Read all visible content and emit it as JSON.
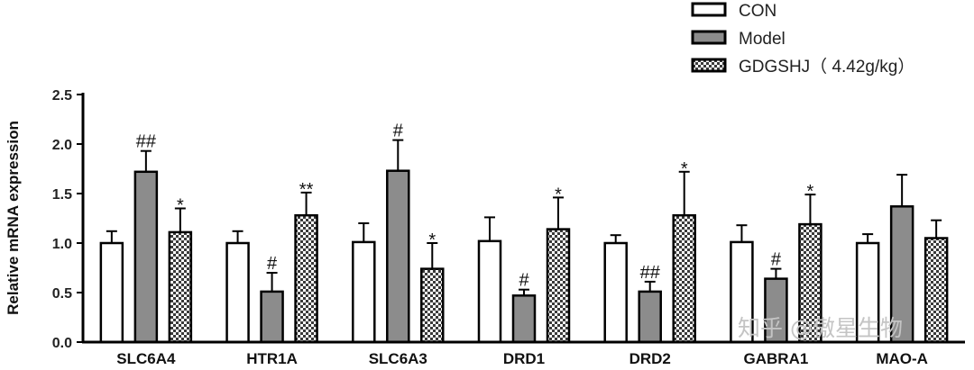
{
  "chart_data": {
    "type": "bar",
    "ylabel": "Relative mRNA expression",
    "ylim": [
      0,
      2.5
    ],
    "yticks": [
      "0.0",
      "0.5",
      "1.0",
      "1.5",
      "2.0",
      "2.5"
    ],
    "categories": [
      "SLC6A4",
      "HTR1A",
      "SLC6A3",
      "DRD1",
      "DRD2",
      "GABRA1",
      "MAO-A"
    ],
    "series": [
      {
        "name": "CON",
        "color": "#ffffff",
        "pattern": "none",
        "values": [
          1.0,
          1.0,
          1.01,
          1.02,
          1.0,
          1.01,
          1.0
        ],
        "errors": [
          0.12,
          0.12,
          0.19,
          0.24,
          0.08,
          0.17,
          0.09
        ],
        "marks": [
          "",
          "",
          "",
          "",
          "",
          "",
          ""
        ]
      },
      {
        "name": "Model",
        "color": "#8c8c8c",
        "pattern": "none",
        "values": [
          1.72,
          0.51,
          1.73,
          0.47,
          0.51,
          0.64,
          1.37
        ],
        "errors": [
          0.21,
          0.19,
          0.31,
          0.06,
          0.1,
          0.1,
          0.32
        ],
        "marks": [
          "##",
          "#",
          "#",
          "#",
          "##",
          "#",
          ""
        ]
      },
      {
        "name": "GDGSHJ（ 4.42g/kg）",
        "color": "#444444",
        "pattern": "checker",
        "values": [
          1.11,
          1.28,
          0.74,
          1.14,
          1.28,
          1.19,
          1.05
        ],
        "errors": [
          0.24,
          0.23,
          0.26,
          0.32,
          0.44,
          0.3,
          0.18
        ],
        "marks": [
          "*",
          "**",
          "*",
          "*",
          "*",
          "*",
          ""
        ]
      }
    ],
    "legend_position": "top-right"
  },
  "watermark": "知乎 @傲星生物"
}
